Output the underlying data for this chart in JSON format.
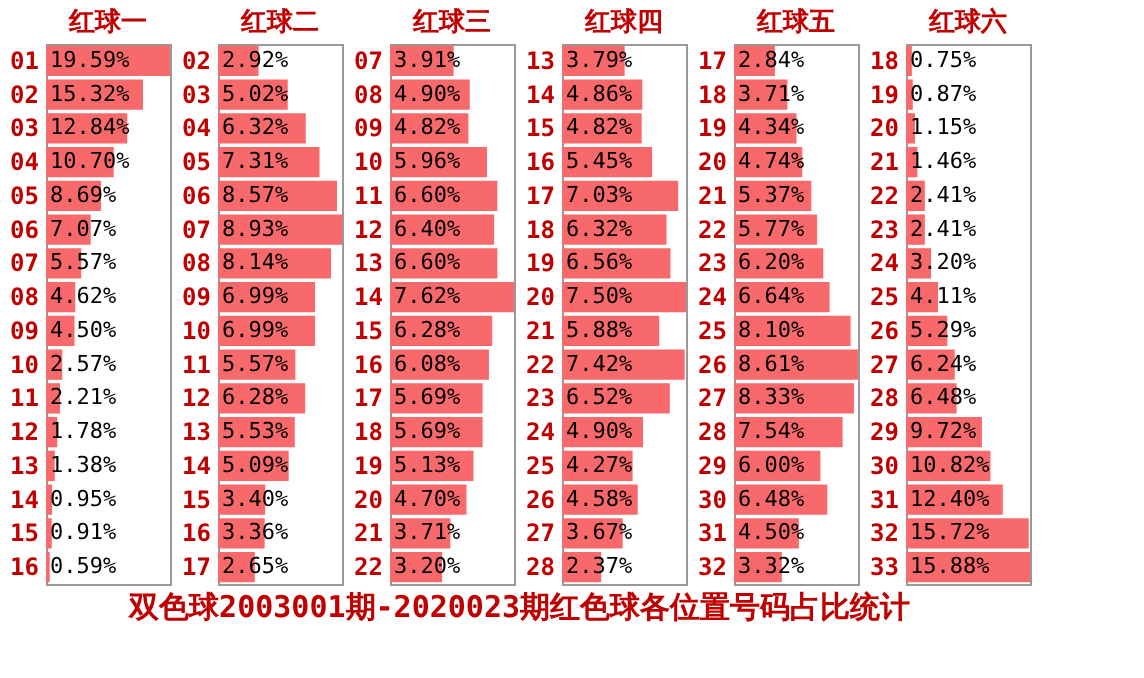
{
  "chart_data": [
    {
      "type": "bar",
      "orientation": "horizontal",
      "title": "红球一",
      "color": "#f8696b",
      "categories": [
        "01",
        "02",
        "03",
        "04",
        "05",
        "06",
        "07",
        "08",
        "09",
        "10",
        "11",
        "12",
        "13",
        "14",
        "15",
        "16"
      ],
      "values": [
        19.59,
        15.32,
        12.84,
        10.7,
        8.69,
        7.07,
        5.57,
        4.62,
        4.5,
        2.57,
        2.21,
        1.78,
        1.38,
        0.95,
        0.91,
        0.59
      ],
      "value_labels": [
        "19.59%",
        "15.32%",
        "12.84%",
        "10.70%",
        "8.69%",
        "7.07%",
        "5.57%",
        "4.62%",
        "4.50%",
        "2.57%",
        "2.21%",
        "1.78%",
        "1.38%",
        "0.95%",
        "0.91%",
        "0.59%"
      ],
      "annotations": [
        "双色球2003001期-2020023期红色球各位置号码占比统计"
      ]
    },
    {
      "type": "bar",
      "orientation": "horizontal",
      "title": "红球二",
      "color": "#f8696b",
      "categories": [
        "02",
        "03",
        "04",
        "05",
        "06",
        "07",
        "08",
        "09",
        "10",
        "11",
        "12",
        "13",
        "14",
        "15",
        "16",
        "17"
      ],
      "values": [
        2.92,
        5.02,
        6.32,
        7.31,
        8.57,
        8.93,
        8.14,
        6.99,
        6.99,
        5.57,
        6.28,
        5.53,
        5.09,
        3.4,
        3.36,
        2.65
      ],
      "value_labels": [
        "2.92%",
        "5.02%",
        "6.32%",
        "7.31%",
        "8.57%",
        "8.93%",
        "8.14%",
        "6.99%",
        "6.99%",
        "5.57%",
        "6.28%",
        "5.53%",
        "5.09%",
        "3.40%",
        "3.36%",
        "2.65%"
      ]
    },
    {
      "type": "bar",
      "orientation": "horizontal",
      "title": "红球三",
      "color": "#f8696b",
      "categories": [
        "07",
        "08",
        "09",
        "10",
        "11",
        "12",
        "13",
        "14",
        "15",
        "16",
        "17",
        "18",
        "19",
        "20",
        "21",
        "22"
      ],
      "values": [
        3.91,
        4.9,
        4.82,
        5.96,
        6.6,
        6.4,
        6.6,
        7.62,
        6.28,
        6.08,
        5.69,
        5.69,
        5.13,
        4.7,
        3.71,
        3.2
      ],
      "value_labels": [
        "3.91%",
        "4.90%",
        "4.82%",
        "5.96%",
        "6.60%",
        "6.40%",
        "6.60%",
        "7.62%",
        "6.28%",
        "6.08%",
        "5.69%",
        "5.69%",
        "5.13%",
        "4.70%",
        "3.71%",
        "3.20%"
      ]
    },
    {
      "type": "bar",
      "orientation": "horizontal",
      "title": "红球四",
      "color": "#f8696b",
      "categories": [
        "13",
        "14",
        "15",
        "16",
        "17",
        "18",
        "19",
        "20",
        "21",
        "22",
        "23",
        "24",
        "25",
        "26",
        "27",
        "28"
      ],
      "values": [
        3.79,
        4.86,
        4.82,
        5.45,
        7.03,
        6.32,
        6.56,
        7.5,
        5.88,
        7.42,
        6.52,
        4.9,
        4.27,
        4.58,
        3.67,
        2.37
      ],
      "value_labels": [
        "3.79%",
        "4.86%",
        "4.82%",
        "5.45%",
        "7.03%",
        "6.32%",
        "6.56%",
        "7.50%",
        "5.88%",
        "7.42%",
        "6.52%",
        "4.90%",
        "4.27%",
        "4.58%",
        "3.67%",
        "2.37%"
      ]
    },
    {
      "type": "bar",
      "orientation": "horizontal",
      "title": "红球五",
      "color": "#f8696b",
      "categories": [
        "17",
        "18",
        "19",
        "20",
        "21",
        "22",
        "23",
        "24",
        "25",
        "26",
        "27",
        "28",
        "29",
        "30",
        "31",
        "32"
      ],
      "values": [
        2.84,
        3.71,
        4.34,
        4.74,
        5.37,
        5.77,
        6.2,
        6.64,
        8.1,
        8.61,
        8.33,
        7.54,
        6.0,
        6.48,
        4.5,
        3.32
      ],
      "value_labels": [
        "2.84%",
        "3.71%",
        "4.34%",
        "4.74%",
        "5.37%",
        "5.77%",
        "6.20%",
        "6.64%",
        "8.10%",
        "8.61%",
        "8.33%",
        "7.54%",
        "6.00%",
        "6.48%",
        "4.50%",
        "3.32%"
      ]
    },
    {
      "type": "bar",
      "orientation": "horizontal",
      "title": "红球六",
      "color": "#f8696b",
      "categories": [
        "18",
        "19",
        "20",
        "21",
        "22",
        "23",
        "24",
        "25",
        "26",
        "27",
        "28",
        "29",
        "30",
        "31",
        "32",
        "33"
      ],
      "values": [
        0.75,
        0.87,
        1.15,
        1.46,
        2.41,
        2.41,
        3.2,
        4.11,
        5.29,
        6.24,
        6.48,
        9.72,
        10.82,
        12.4,
        15.72,
        15.88
      ],
      "value_labels": [
        "0.75%",
        "0.87%",
        "1.15%",
        "1.46%",
        "2.41%",
        "2.41%",
        "3.20%",
        "4.11%",
        "5.29%",
        "6.24%",
        "6.48%",
        "9.72%",
        "10.82%",
        "12.40%",
        "15.72%",
        "15.88%"
      ]
    }
  ]
}
